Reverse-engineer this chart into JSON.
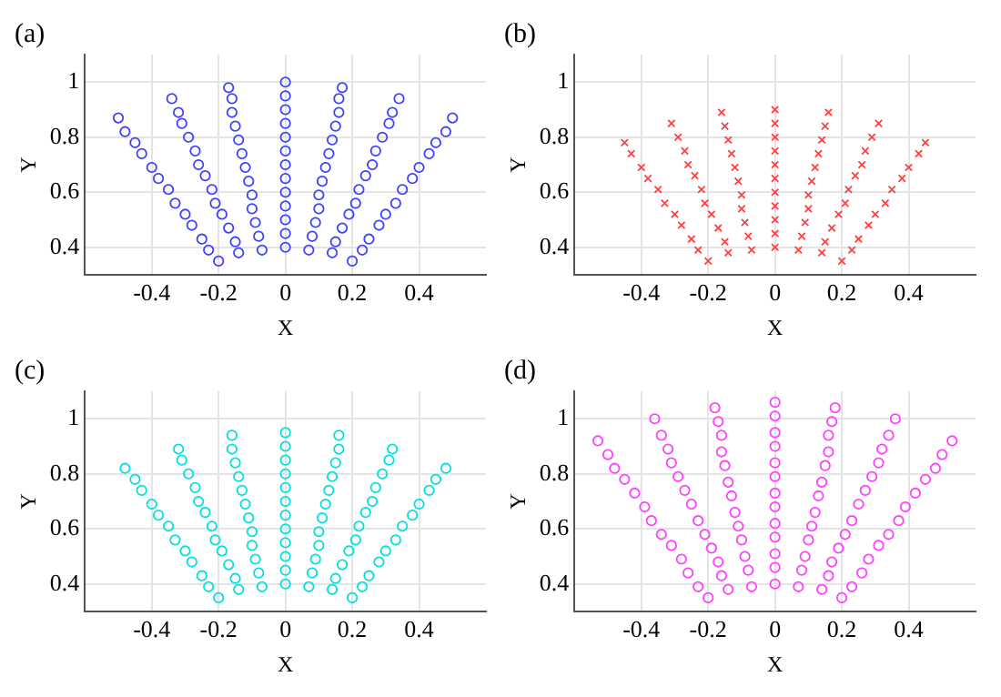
{
  "chart_data": [
    {
      "type": "scatter",
      "title": "(a)",
      "xlabel": "X",
      "ylabel": "Y",
      "color": "#4040ff",
      "marker": "circle",
      "grid": true,
      "xlim": [
        -0.6,
        0.6
      ],
      "ylim": [
        0.3,
        1.1
      ],
      "xticks": [
        -0.4,
        -0.2,
        0,
        0.2,
        0.4
      ],
      "yticks": [
        0.4,
        0.6,
        0.8,
        1
      ],
      "x": [
        -0.2,
        -0.14,
        -0.07,
        0,
        0.07,
        0.14,
        0.2,
        -0.23,
        -0.15,
        -0.08,
        0,
        0.08,
        0.15,
        0.23,
        -0.25,
        -0.17,
        -0.09,
        0,
        0.09,
        0.17,
        0.25,
        -0.28,
        -0.19,
        -0.1,
        0,
        0.1,
        0.19,
        0.28,
        -0.3,
        -0.21,
        -0.1,
        0,
        0.1,
        0.21,
        0.3,
        -0.33,
        -0.22,
        -0.11,
        0,
        0.11,
        0.22,
        0.33,
        -0.35,
        -0.24,
        -0.12,
        0,
        0.12,
        0.24,
        0.35,
        -0.38,
        -0.26,
        -0.13,
        0,
        0.13,
        0.26,
        0.38,
        -0.4,
        -0.27,
        -0.14,
        0,
        0.14,
        0.27,
        0.4,
        -0.43,
        -0.29,
        -0.15,
        0,
        0.15,
        0.29,
        0.43,
        -0.45,
        -0.31,
        -0.16,
        0,
        0.16,
        0.31,
        0.45,
        -0.48,
        -0.32,
        -0.16,
        0,
        0.16,
        0.32,
        0.48,
        -0.5,
        -0.34,
        -0.17,
        0,
        0.17,
        0.34,
        0.5
      ],
      "values": [
        0.35,
        0.38,
        0.39,
        0.4,
        0.39,
        0.38,
        0.35,
        0.39,
        0.42,
        0.44,
        0.45,
        0.44,
        0.42,
        0.39,
        0.43,
        0.47,
        0.49,
        0.5,
        0.49,
        0.47,
        0.43,
        0.48,
        0.52,
        0.54,
        0.55,
        0.54,
        0.52,
        0.48,
        0.52,
        0.56,
        0.59,
        0.6,
        0.59,
        0.56,
        0.52,
        0.56,
        0.61,
        0.64,
        0.65,
        0.64,
        0.61,
        0.56,
        0.61,
        0.66,
        0.69,
        0.7,
        0.69,
        0.66,
        0.61,
        0.65,
        0.7,
        0.74,
        0.75,
        0.74,
        0.7,
        0.65,
        0.69,
        0.75,
        0.79,
        0.8,
        0.79,
        0.75,
        0.69,
        0.74,
        0.8,
        0.84,
        0.85,
        0.84,
        0.8,
        0.74,
        0.78,
        0.85,
        0.89,
        0.9,
        0.89,
        0.85,
        0.78,
        0.82,
        0.89,
        0.94,
        0.95,
        0.94,
        0.89,
        0.82,
        0.87,
        0.94,
        0.98,
        1,
        0.98,
        0.94,
        0.87
      ]
    },
    {
      "type": "scatter",
      "title": "(b)",
      "xlabel": "X",
      "ylabel": "Y",
      "color": "#ff4040",
      "marker": "cross",
      "grid": true,
      "xlim": [
        -0.6,
        0.6
      ],
      "ylim": [
        0.3,
        1.1
      ],
      "xticks": [
        -0.4,
        -0.2,
        0,
        0.2,
        0.4
      ],
      "yticks": [
        0.4,
        0.6,
        0.8,
        1
      ],
      "x": [
        -0.2,
        -0.14,
        -0.07,
        0,
        0.07,
        0.14,
        0.2,
        -0.23,
        -0.15,
        -0.08,
        0,
        0.08,
        0.15,
        0.23,
        -0.25,
        -0.17,
        -0.09,
        0,
        0.09,
        0.17,
        0.25,
        -0.28,
        -0.19,
        -0.1,
        0,
        0.1,
        0.19,
        0.28,
        -0.3,
        -0.21,
        -0.1,
        0,
        0.1,
        0.21,
        0.3,
        -0.33,
        -0.22,
        -0.11,
        0,
        0.11,
        0.22,
        0.33,
        -0.35,
        -0.24,
        -0.12,
        0,
        0.12,
        0.24,
        0.35,
        -0.38,
        -0.26,
        -0.13,
        0,
        0.13,
        0.26,
        0.38,
        -0.4,
        -0.27,
        -0.14,
        0,
        0.14,
        0.27,
        0.4,
        -0.43,
        -0.29,
        -0.15,
        0,
        0.15,
        0.29,
        0.43,
        -0.45,
        -0.31,
        -0.16,
        0,
        0.16,
        0.31,
        0.45
      ],
      "values": [
        0.35,
        0.38,
        0.39,
        0.4,
        0.39,
        0.38,
        0.35,
        0.39,
        0.42,
        0.44,
        0.45,
        0.44,
        0.42,
        0.39,
        0.43,
        0.47,
        0.49,
        0.5,
        0.49,
        0.47,
        0.43,
        0.48,
        0.52,
        0.54,
        0.55,
        0.54,
        0.52,
        0.48,
        0.52,
        0.56,
        0.59,
        0.6,
        0.59,
        0.56,
        0.52,
        0.56,
        0.61,
        0.64,
        0.65,
        0.64,
        0.61,
        0.56,
        0.61,
        0.66,
        0.69,
        0.7,
        0.69,
        0.66,
        0.61,
        0.65,
        0.7,
        0.74,
        0.75,
        0.74,
        0.7,
        0.65,
        0.69,
        0.75,
        0.79,
        0.8,
        0.79,
        0.75,
        0.69,
        0.74,
        0.8,
        0.84,
        0.85,
        0.84,
        0.8,
        0.74,
        0.78,
        0.85,
        0.89,
        0.9,
        0.89,
        0.85,
        0.78
      ]
    },
    {
      "type": "scatter",
      "title": "(c)",
      "xlabel": "X",
      "ylabel": "Y",
      "color": "#00e0e0",
      "marker": "circle",
      "grid": true,
      "xlim": [
        -0.6,
        0.6
      ],
      "ylim": [
        0.3,
        1.1
      ],
      "xticks": [
        -0.4,
        -0.2,
        0,
        0.2,
        0.4
      ],
      "yticks": [
        0.4,
        0.6,
        0.8,
        1
      ],
      "x": [
        -0.2,
        -0.14,
        -0.07,
        0,
        0.07,
        0.14,
        0.2,
        -0.23,
        -0.15,
        -0.08,
        0,
        0.08,
        0.15,
        0.23,
        -0.25,
        -0.17,
        -0.09,
        0,
        0.09,
        0.17,
        0.25,
        -0.28,
        -0.19,
        -0.1,
        0,
        0.1,
        0.19,
        0.28,
        -0.3,
        -0.21,
        -0.1,
        0,
        0.1,
        0.21,
        0.3,
        -0.33,
        -0.22,
        -0.11,
        0,
        0.11,
        0.22,
        0.33,
        -0.35,
        -0.24,
        -0.12,
        0,
        0.12,
        0.24,
        0.35,
        -0.38,
        -0.26,
        -0.13,
        0,
        0.13,
        0.26,
        0.38,
        -0.4,
        -0.27,
        -0.14,
        0,
        0.14,
        0.27,
        0.4,
        -0.43,
        -0.29,
        -0.15,
        0,
        0.15,
        0.29,
        0.43,
        -0.45,
        -0.31,
        -0.16,
        0,
        0.16,
        0.31,
        0.45,
        -0.48,
        -0.32,
        -0.16,
        0,
        0.16,
        0.32,
        0.48
      ],
      "values": [
        0.35,
        0.38,
        0.39,
        0.4,
        0.39,
        0.38,
        0.35,
        0.39,
        0.42,
        0.44,
        0.45,
        0.44,
        0.42,
        0.39,
        0.43,
        0.47,
        0.49,
        0.5,
        0.49,
        0.47,
        0.43,
        0.48,
        0.52,
        0.54,
        0.55,
        0.54,
        0.52,
        0.48,
        0.52,
        0.56,
        0.59,
        0.6,
        0.59,
        0.56,
        0.52,
        0.56,
        0.61,
        0.64,
        0.65,
        0.64,
        0.61,
        0.56,
        0.61,
        0.66,
        0.69,
        0.7,
        0.69,
        0.66,
        0.61,
        0.65,
        0.7,
        0.74,
        0.75,
        0.74,
        0.7,
        0.65,
        0.69,
        0.75,
        0.79,
        0.8,
        0.79,
        0.75,
        0.69,
        0.74,
        0.8,
        0.84,
        0.85,
        0.84,
        0.8,
        0.74,
        0.78,
        0.85,
        0.89,
        0.9,
        0.89,
        0.85,
        0.78,
        0.82,
        0.89,
        0.94,
        0.95,
        0.94,
        0.89,
        0.82
      ]
    },
    {
      "type": "scatter",
      "title": "(d)",
      "xlabel": "X",
      "ylabel": "Y",
      "color": "#ff40ff",
      "marker": "circle",
      "grid": true,
      "xlim": [
        -0.6,
        0.6
      ],
      "ylim": [
        0.3,
        1.1
      ],
      "xticks": [
        -0.4,
        -0.2,
        0,
        0.2,
        0.4
      ],
      "yticks": [
        0.4,
        0.6,
        0.8,
        1
      ],
      "x": [
        -0.2,
        -0.14,
        -0.07,
        0,
        0.07,
        0.14,
        0.2,
        -0.23,
        -0.16,
        -0.08,
        0,
        0.08,
        0.16,
        0.23,
        -0.26,
        -0.17,
        -0.09,
        0,
        0.09,
        0.17,
        0.26,
        -0.28,
        -0.19,
        -0.1,
        0,
        0.1,
        0.19,
        0.28,
        -0.31,
        -0.21,
        -0.11,
        0,
        0.11,
        0.21,
        0.31,
        -0.34,
        -0.23,
        -0.12,
        0,
        0.12,
        0.23,
        0.34,
        -0.37,
        -0.25,
        -0.13,
        0,
        0.13,
        0.25,
        0.37,
        -0.39,
        -0.27,
        -0.14,
        0,
        0.14,
        0.27,
        0.39,
        -0.42,
        -0.29,
        -0.15,
        0,
        0.15,
        0.29,
        0.42,
        -0.45,
        -0.31,
        -0.16,
        0,
        0.16,
        0.31,
        0.45,
        -0.48,
        -0.32,
        -0.16,
        0,
        0.16,
        0.32,
        0.48,
        -0.5,
        -0.34,
        -0.17,
        0,
        0.17,
        0.34,
        0.5,
        -0.53,
        -0.36,
        -0.18,
        0,
        0.18,
        0.36,
        0.53
      ],
      "values": [
        0.35,
        0.38,
        0.39,
        0.4,
        0.39,
        0.38,
        0.35,
        0.39,
        0.43,
        0.45,
        0.46,
        0.45,
        0.43,
        0.39,
        0.44,
        0.48,
        0.5,
        0.51,
        0.5,
        0.48,
        0.44,
        0.49,
        0.53,
        0.56,
        0.57,
        0.56,
        0.53,
        0.49,
        0.54,
        0.58,
        0.61,
        0.62,
        0.61,
        0.58,
        0.54,
        0.58,
        0.63,
        0.66,
        0.68,
        0.66,
        0.63,
        0.58,
        0.63,
        0.69,
        0.72,
        0.73,
        0.72,
        0.69,
        0.63,
        0.68,
        0.74,
        0.77,
        0.79,
        0.77,
        0.74,
        0.68,
        0.73,
        0.79,
        0.83,
        0.84,
        0.83,
        0.79,
        0.73,
        0.78,
        0.84,
        0.88,
        0.9,
        0.88,
        0.84,
        0.78,
        0.82,
        0.89,
        0.94,
        0.95,
        0.94,
        0.89,
        0.82,
        0.87,
        0.94,
        0.99,
        1.01,
        0.99,
        0.94,
        0.87,
        0.92,
        1,
        1.04,
        1.06,
        1.04,
        1,
        0.92
      ]
    }
  ]
}
